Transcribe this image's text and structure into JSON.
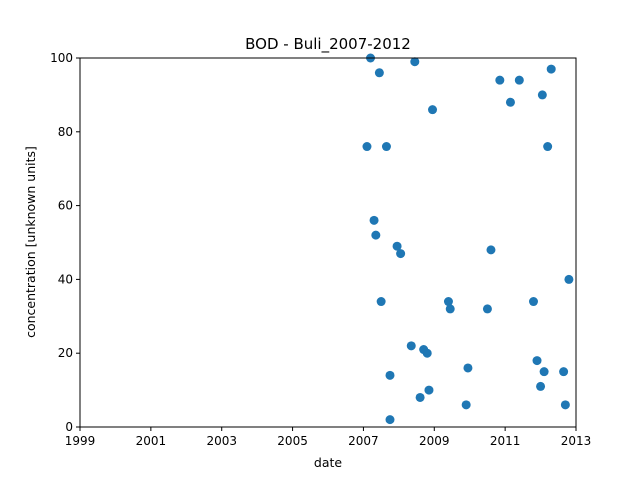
{
  "chart_data": {
    "type": "scatter",
    "title": "BOD - Buli_2007-2012",
    "xlabel": "date",
    "ylabel": "concentration [unknown units]",
    "xlim": [
      1999,
      2013
    ],
    "ylim": [
      0,
      100
    ],
    "xticks": [
      "1999",
      "2001",
      "2003",
      "2005",
      "2007",
      "2009",
      "2011",
      "2013"
    ],
    "yticks": [
      "0",
      "20",
      "40",
      "60",
      "80",
      "100"
    ],
    "grid": false,
    "legend": false,
    "series_color": "#1f77b4",
    "points": [
      {
        "x": 2007.1,
        "y": 76
      },
      {
        "x": 2007.2,
        "y": 100
      },
      {
        "x": 2007.3,
        "y": 56
      },
      {
        "x": 2007.35,
        "y": 52
      },
      {
        "x": 2007.45,
        "y": 96
      },
      {
        "x": 2007.5,
        "y": 34
      },
      {
        "x": 2007.65,
        "y": 76
      },
      {
        "x": 2007.75,
        "y": 14
      },
      {
        "x": 2007.75,
        "y": 2
      },
      {
        "x": 2007.95,
        "y": 49
      },
      {
        "x": 2008.05,
        "y": 47
      },
      {
        "x": 2008.35,
        "y": 22
      },
      {
        "x": 2008.45,
        "y": 99
      },
      {
        "x": 2008.6,
        "y": 8
      },
      {
        "x": 2008.7,
        "y": 21
      },
      {
        "x": 2008.8,
        "y": 20
      },
      {
        "x": 2008.85,
        "y": 10
      },
      {
        "x": 2008.95,
        "y": 86
      },
      {
        "x": 2009.4,
        "y": 34
      },
      {
        "x": 2009.45,
        "y": 32
      },
      {
        "x": 2009.9,
        "y": 6
      },
      {
        "x": 2009.95,
        "y": 16
      },
      {
        "x": 2010.5,
        "y": 32
      },
      {
        "x": 2010.6,
        "y": 48
      },
      {
        "x": 2010.85,
        "y": 94
      },
      {
        "x": 2011.15,
        "y": 88
      },
      {
        "x": 2011.4,
        "y": 94
      },
      {
        "x": 2011.8,
        "y": 34
      },
      {
        "x": 2011.9,
        "y": 18
      },
      {
        "x": 2012.0,
        "y": 11
      },
      {
        "x": 2012.05,
        "y": 90
      },
      {
        "x": 2012.1,
        "y": 15
      },
      {
        "x": 2012.2,
        "y": 76
      },
      {
        "x": 2012.3,
        "y": 97
      },
      {
        "x": 2012.65,
        "y": 15
      },
      {
        "x": 2012.7,
        "y": 6
      },
      {
        "x": 2012.8,
        "y": 40
      }
    ]
  }
}
